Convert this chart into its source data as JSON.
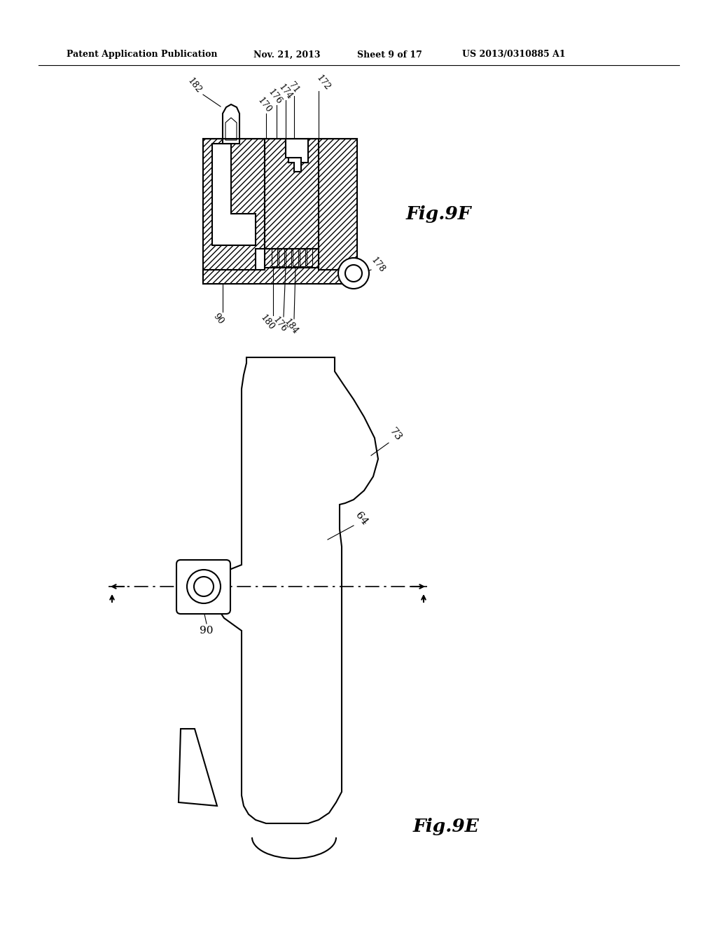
{
  "background_color": "#ffffff",
  "header_text": "Patent Application Publication",
  "header_date": "Nov. 21, 2013",
  "header_sheet": "Sheet 9 of 17",
  "header_patent": "US 2013/0310885 A1",
  "fig9f_label": "Fig.9F",
  "fig9e_label": "Fig.9E",
  "label_color": "#000000"
}
